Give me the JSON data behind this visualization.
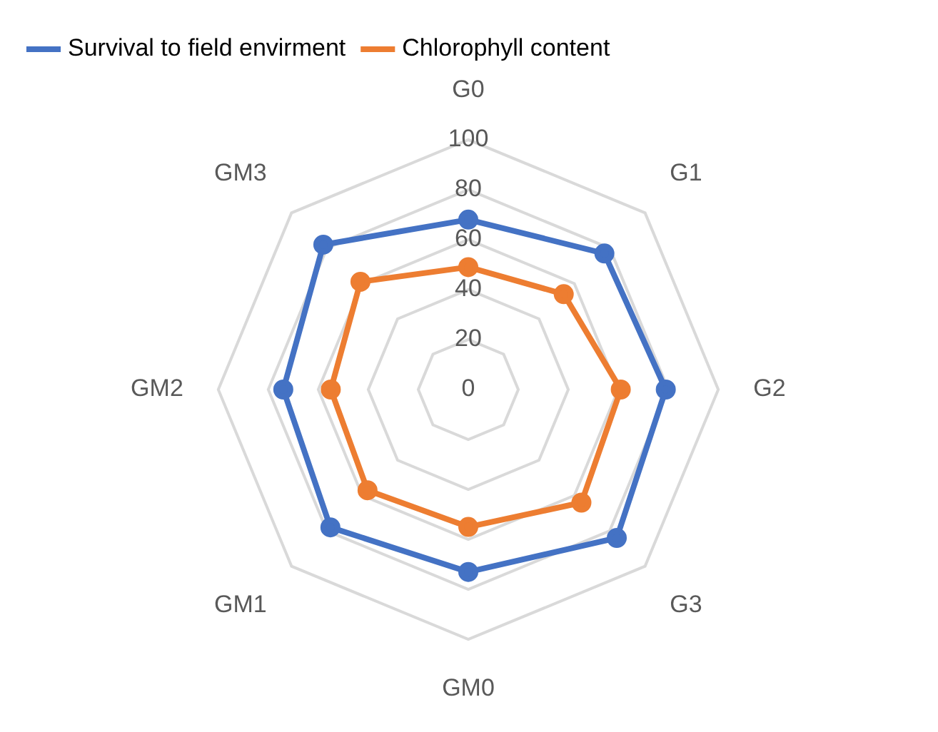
{
  "chart_data": {
    "type": "radar",
    "categories": [
      "G0",
      "G1",
      "G2",
      "G3",
      "GM0",
      "GM1",
      "GM2",
      "GM3"
    ],
    "series": [
      {
        "name": "Survival to field envirment",
        "color": "#4472c4",
        "values": [
          68,
          77,
          79,
          84,
          73,
          78,
          74,
          82
        ]
      },
      {
        "name": "Chlorophyll content",
        "color": "#ed7d31",
        "values": [
          49,
          54,
          61,
          64,
          55,
          57,
          55,
          61
        ]
      }
    ],
    "ylim": [
      0,
      100
    ],
    "yticks": [
      0,
      20,
      40,
      60,
      80,
      100
    ],
    "grid": true,
    "legend": "top left",
    "marker": "circle"
  }
}
